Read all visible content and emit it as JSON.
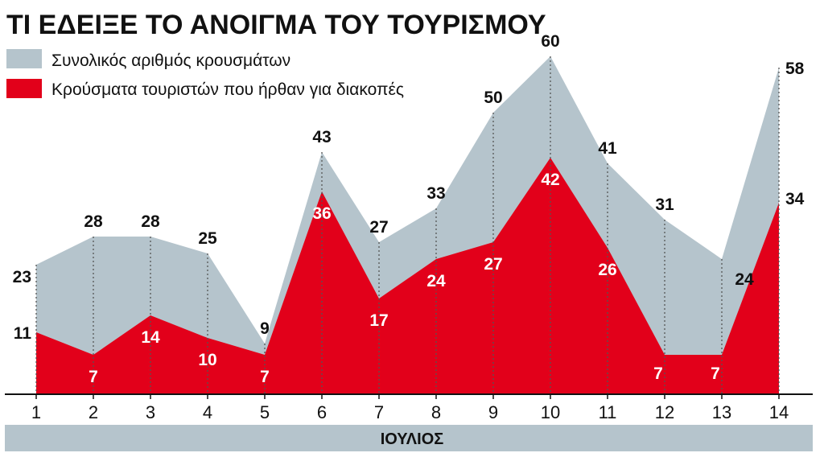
{
  "chart_data": {
    "type": "area",
    "title": "ΤΙ ΕΔΕΙΞΕ ΤΟ ΑΝΟΙΓΜΑ ΤΟΥ ΤΟΥΡΙΣΜΟΥ",
    "xlabel": "ΙΟΥΛΙΟΣ",
    "ylabel": "",
    "categories": [
      "1",
      "2",
      "3",
      "4",
      "5",
      "6",
      "7",
      "8",
      "9",
      "10",
      "11",
      "12",
      "13",
      "14"
    ],
    "ylim": [
      0,
      62
    ],
    "grid": false,
    "legend_placement": "top-left",
    "series": [
      {
        "name": "Συνολικός αριθμός κρουσμάτων",
        "color": "#b5c4cc",
        "values": [
          23,
          28,
          28,
          25,
          9,
          43,
          27,
          33,
          50,
          60,
          41,
          31,
          24,
          58
        ]
      },
      {
        "name": "Κρούσματα τουριστών που ήρθαν για διακοπές",
        "color": "#e2001a",
        "values": [
          11,
          7,
          14,
          10,
          7,
          36,
          17,
          24,
          27,
          42,
          26,
          7,
          7,
          34
        ]
      }
    ]
  }
}
